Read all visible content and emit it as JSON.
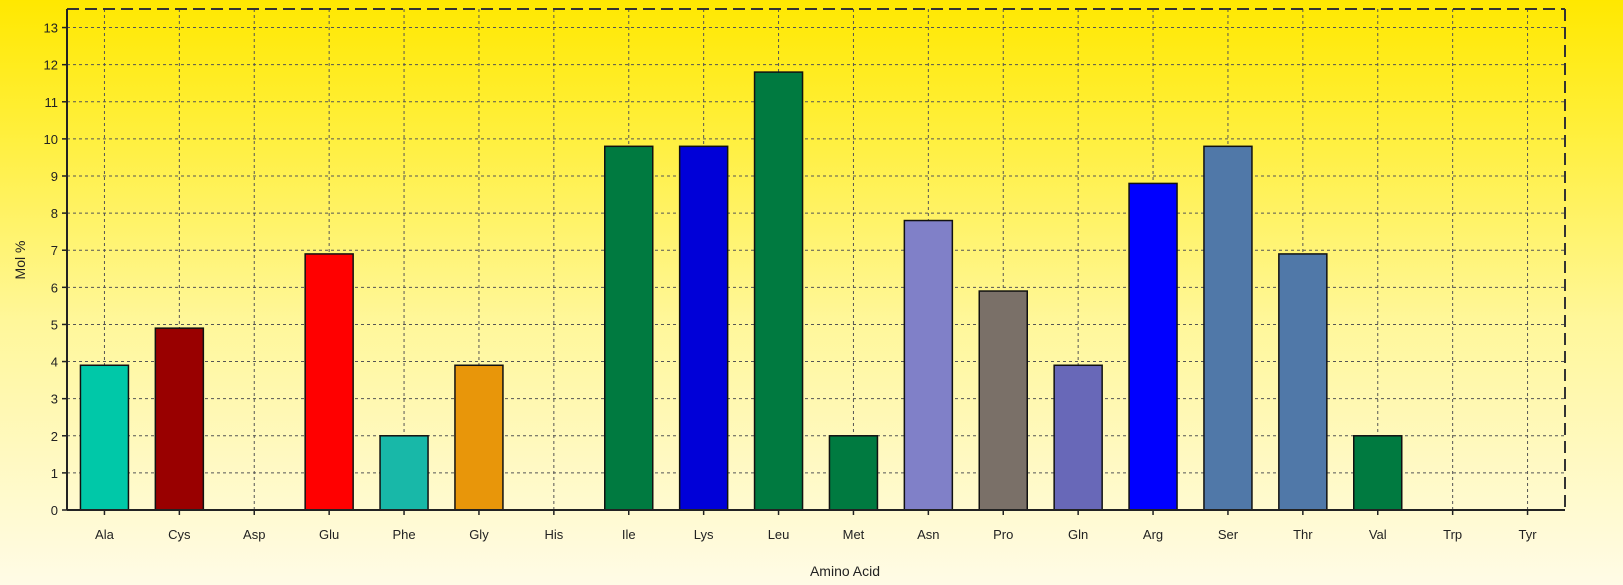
{
  "chart_data": {
    "type": "bar",
    "title": "",
    "xlabel": "Amino Acid",
    "ylabel": "Mol %",
    "ylim": [
      0,
      13.5
    ],
    "yticks": [
      0,
      1,
      2,
      3,
      4,
      5,
      6,
      7,
      8,
      9,
      10,
      11,
      12,
      13
    ],
    "grid": true,
    "categories": [
      "Ala",
      "Cys",
      "Asp",
      "Glu",
      "Phe",
      "Gly",
      "His",
      "Ile",
      "Lys",
      "Leu",
      "Met",
      "Asn",
      "Pro",
      "Gln",
      "Arg",
      "Ser",
      "Thr",
      "Val",
      "Trp",
      "Tyr"
    ],
    "values": [
      3.9,
      4.9,
      0,
      6.9,
      2.0,
      3.9,
      0,
      9.8,
      9.8,
      11.8,
      2.0,
      7.8,
      5.9,
      3.9,
      8.8,
      9.8,
      6.9,
      2.0,
      0,
      0
    ],
    "colors": [
      "#00c8a8",
      "#990000",
      "#000000",
      "#ff0000",
      "#18b8a8",
      "#e8960a",
      "#000000",
      "#007a40",
      "#0000d8",
      "#007a40",
      "#007a40",
      "#8080c8",
      "#7a7068",
      "#6868b8",
      "#0000ff",
      "#5078a8",
      "#5078a8",
      "#007a40",
      "#000000",
      "#000000"
    ]
  }
}
